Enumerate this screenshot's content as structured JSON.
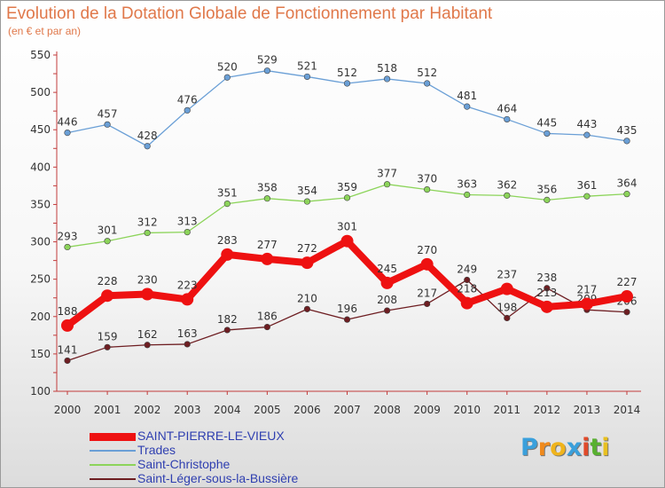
{
  "title": "Evolution de la Dotation Globale de Fonctionnement par Habitant",
  "subtitle": "(en € et par an)",
  "logo": {
    "letters": [
      "P",
      "r",
      "o",
      "x",
      "i",
      "t",
      "i"
    ],
    "colors": [
      "#3aa0dc",
      "#f08a1c",
      "#f0b41c",
      "#3aa0dc",
      "#e04a2a",
      "#58b030",
      "#e8c020"
    ]
  },
  "chart_data": {
    "type": "line",
    "x": [
      "2000",
      "2001",
      "2002",
      "2003",
      "2004",
      "2005",
      "2006",
      "2007",
      "2008",
      "2009",
      "2010",
      "2011",
      "2012",
      "2013",
      "2014"
    ],
    "ylim": [
      100,
      550
    ],
    "yticks": [
      "100",
      "150",
      "200",
      "250",
      "300",
      "350",
      "400",
      "450",
      "500",
      "550"
    ],
    "grid": false,
    "legend_position": "bottom-left",
    "series": [
      {
        "name": "SAINT-PIERRE-LE-VIEUX",
        "color": "#ee1111",
        "emphasis": true,
        "values": [
          188,
          228,
          230,
          223,
          283,
          277,
          272,
          301,
          245,
          270,
          218,
          237,
          213,
          217,
          227
        ],
        "labels": [
          "188",
          "228",
          "230",
          "223",
          "283",
          "277",
          "272",
          "301",
          "245",
          "270",
          "218",
          "237",
          "213",
          "217",
          "227"
        ]
      },
      {
        "name": "Trades",
        "color": "#6a9fd6",
        "emphasis": false,
        "values": [
          446,
          457,
          428,
          476,
          520,
          529,
          521,
          512,
          518,
          512,
          481,
          464,
          445,
          443,
          435
        ],
        "labels": [
          "446",
          "457",
          "428",
          "476",
          "520",
          "529",
          "521",
          "512",
          "518",
          "512",
          "481",
          "464",
          "445",
          "443",
          "435"
        ]
      },
      {
        "name": "Saint-Christophe",
        "color": "#8cd45a",
        "emphasis": false,
        "values": [
          293,
          301,
          312,
          313,
          351,
          358,
          354,
          359,
          377,
          370,
          363,
          362,
          356,
          361,
          364
        ],
        "labels": [
          "293",
          "301",
          "312",
          "313",
          "351",
          "358",
          "354",
          "359",
          "377",
          "370",
          "363",
          "362",
          "356",
          "361",
          "364"
        ]
      },
      {
        "name": "Saint-Léger-sous-la-Bussière",
        "color": "#6e1e22",
        "emphasis": false,
        "values": [
          141,
          159,
          162,
          163,
          182,
          186,
          210,
          196,
          208,
          217,
          249,
          198,
          238,
          209,
          206
        ],
        "labels": [
          "141",
          "159",
          "162",
          "163",
          "182",
          "186",
          "210",
          "196",
          "208",
          "217",
          "249",
          "198",
          "238",
          "209",
          "206"
        ]
      }
    ]
  }
}
